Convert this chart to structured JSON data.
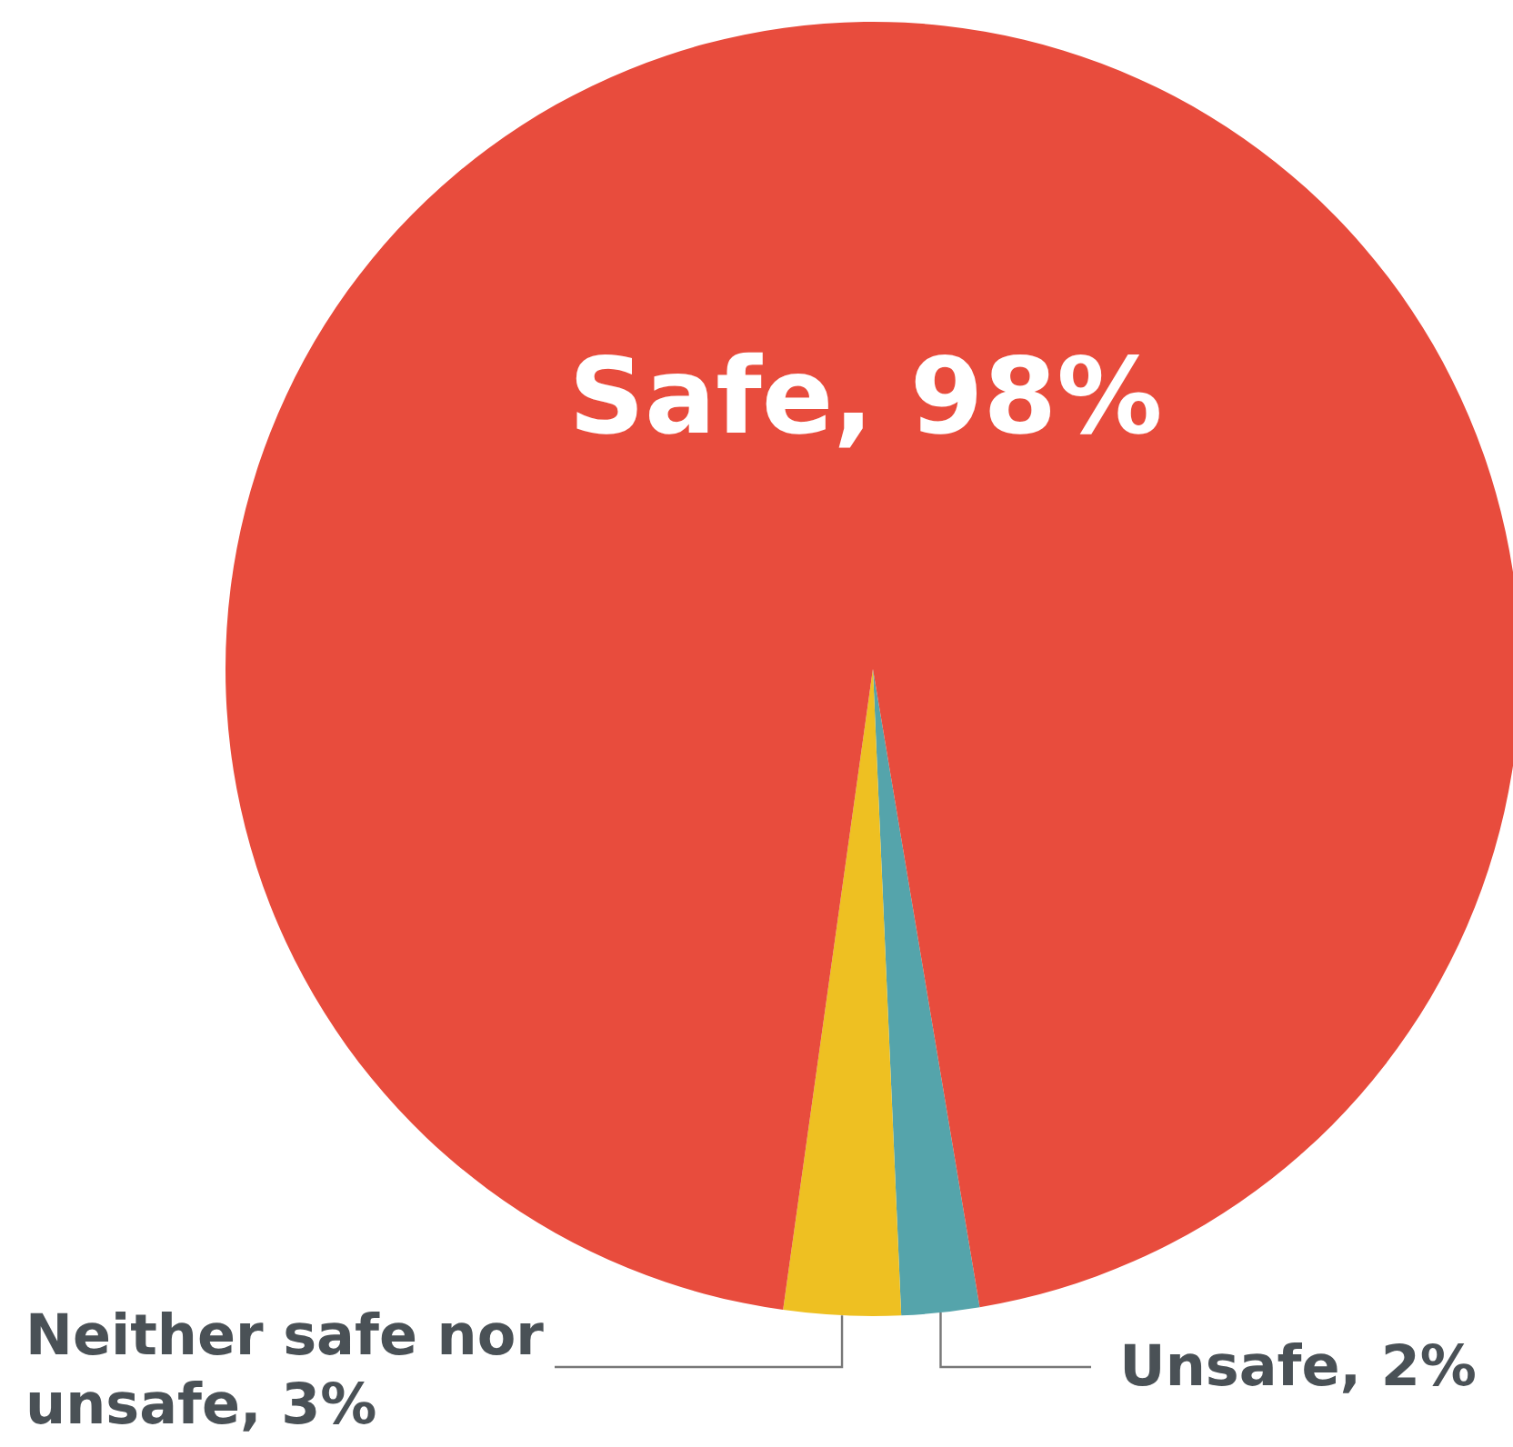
{
  "chart_data": {
    "type": "pie",
    "categories": [
      "Unsafe",
      "Neither safe nor unsafe",
      "Safe"
    ],
    "values": [
      2,
      3,
      98
    ],
    "value_labels": [
      "2%",
      "3%",
      "98%"
    ],
    "colors": [
      "#55a4ab",
      "#eec022",
      "#e84c3d"
    ]
  }
}
